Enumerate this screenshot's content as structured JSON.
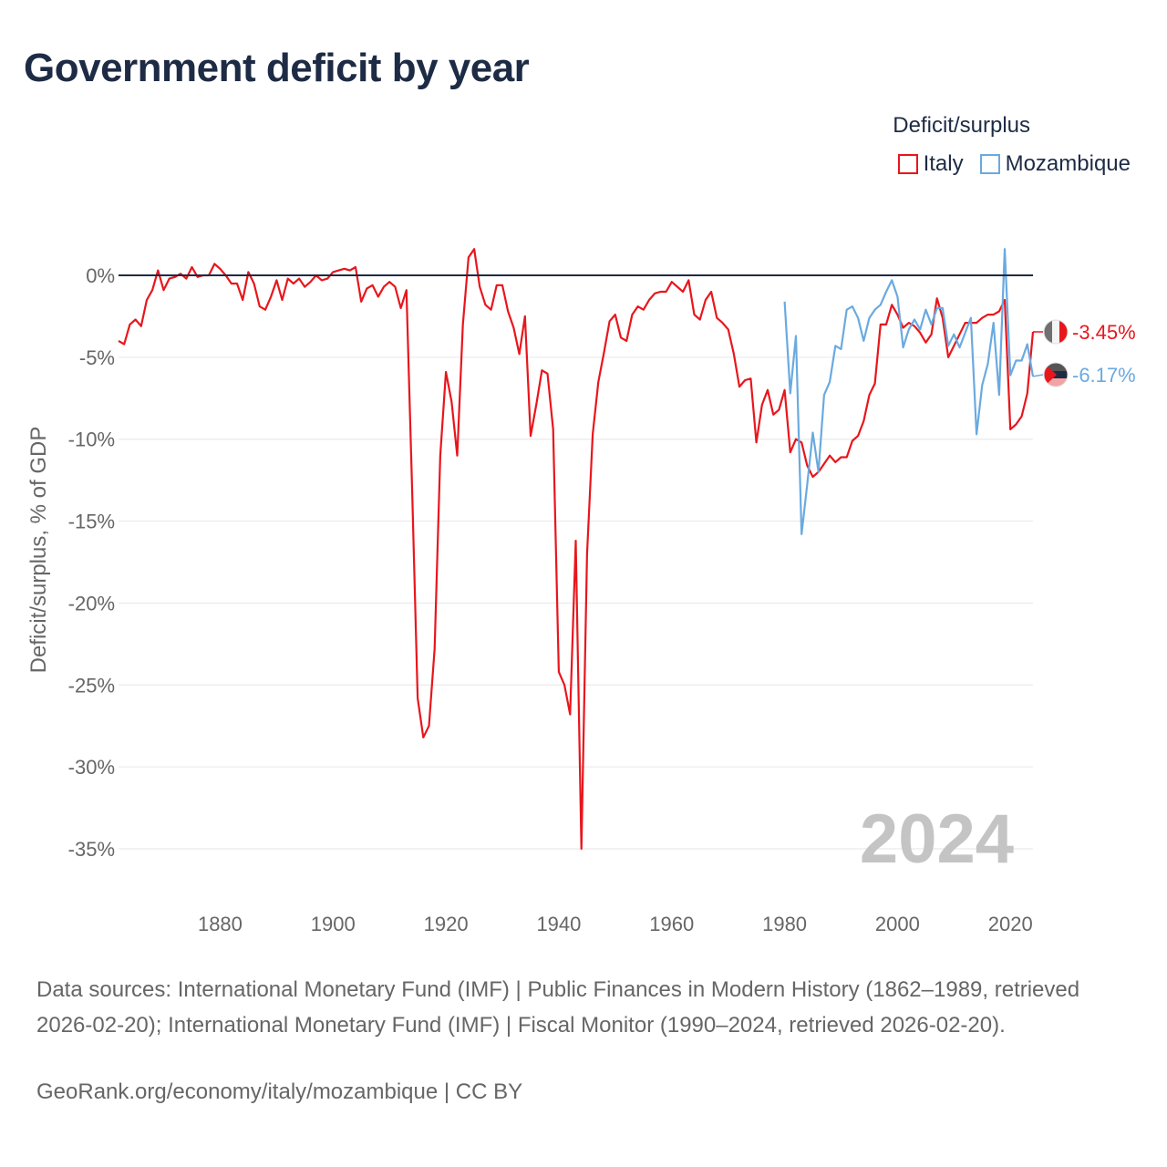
{
  "title": "Government deficit by year",
  "legend": {
    "title": "Deficit/surplus",
    "items": [
      {
        "label": "Italy",
        "color": "#e8161c"
      },
      {
        "label": "Mozambique",
        "color": "#6aaae0"
      }
    ]
  },
  "watermark_year": "2024",
  "footer": {
    "sources": "Data sources: International Monetary Fund (IMF) | Public Finances in Modern History (1862–1989, retrieved 2026-02-20); International Monetary Fund (IMF) | Fiscal Monitor (1990–2024, retrieved 2026-02-20).",
    "credit": "GeoRank.org/economy/italy/mozambique | CC BY"
  },
  "chart_data": {
    "type": "line",
    "title": "Government deficit by year",
    "xlabel": "",
    "ylabel": "Deficit/surplus, % of GDP",
    "xlim": [
      1862,
      2024
    ],
    "ylim": [
      -35,
      0
    ],
    "x_ticks": [
      1880,
      1900,
      1920,
      1940,
      1960,
      1980,
      2000,
      2020
    ],
    "y_ticks": [
      0,
      -5,
      -10,
      -15,
      -20,
      -25,
      -30,
      -35
    ],
    "y_tick_labels": [
      "0%",
      "-5%",
      "-10%",
      "-15%",
      "-20%",
      "-25%",
      "-30%",
      "-35%"
    ],
    "grid": true,
    "legend_position": "top-right",
    "series": [
      {
        "name": "Italy",
        "color": "#e8161c",
        "end_label": "-3.45%",
        "x": [
          1862,
          1863,
          1864,
          1865,
          1866,
          1867,
          1868,
          1869,
          1870,
          1871,
          1872,
          1873,
          1874,
          1875,
          1876,
          1877,
          1878,
          1879,
          1880,
          1881,
          1882,
          1883,
          1884,
          1885,
          1886,
          1887,
          1888,
          1889,
          1890,
          1891,
          1892,
          1893,
          1894,
          1895,
          1896,
          1897,
          1898,
          1899,
          1900,
          1901,
          1902,
          1903,
          1904,
          1905,
          1906,
          1907,
          1908,
          1909,
          1910,
          1911,
          1912,
          1913,
          1914,
          1915,
          1916,
          1917,
          1918,
          1919,
          1920,
          1921,
          1922,
          1923,
          1924,
          1925,
          1926,
          1927,
          1928,
          1929,
          1930,
          1931,
          1932,
          1933,
          1934,
          1935,
          1936,
          1937,
          1938,
          1939,
          1940,
          1941,
          1942,
          1943,
          1944,
          1945,
          1946,
          1947,
          1948,
          1949,
          1950,
          1951,
          1952,
          1953,
          1954,
          1955,
          1956,
          1957,
          1958,
          1959,
          1960,
          1961,
          1962,
          1963,
          1964,
          1965,
          1966,
          1967,
          1968,
          1969,
          1970,
          1971,
          1972,
          1973,
          1974,
          1975,
          1976,
          1977,
          1978,
          1979,
          1980,
          1981,
          1982,
          1983,
          1984,
          1985,
          1986,
          1987,
          1988,
          1989,
          1990,
          1991,
          1992,
          1993,
          1994,
          1995,
          1996,
          1997,
          1998,
          1999,
          2000,
          2001,
          2002,
          2003,
          2004,
          2005,
          2006,
          2007,
          2008,
          2009,
          2010,
          2011,
          2012,
          2013,
          2014,
          2015,
          2016,
          2017,
          2018,
          2019,
          2020,
          2021,
          2022,
          2023,
          2024
        ],
        "values": [
          -4.0,
          -4.2,
          -3.0,
          -2.7,
          -3.1,
          -1.5,
          -0.9,
          0.3,
          -0.9,
          -0.2,
          -0.1,
          0.1,
          -0.2,
          0.5,
          -0.1,
          0.0,
          0.0,
          0.7,
          0.4,
          0.0,
          -0.5,
          -0.5,
          -1.5,
          0.2,
          -0.5,
          -1.9,
          -2.1,
          -1.3,
          -0.3,
          -1.5,
          -0.2,
          -0.5,
          -0.2,
          -0.7,
          -0.4,
          0.0,
          -0.3,
          -0.2,
          0.2,
          0.3,
          0.4,
          0.3,
          0.5,
          -1.6,
          -0.8,
          -0.6,
          -1.3,
          -0.7,
          -0.4,
          -0.7,
          -2.0,
          -0.9,
          -13.0,
          -25.8,
          -28.2,
          -27.5,
          -22.8,
          -11.0,
          -5.9,
          -7.7,
          -11.0,
          -3.0,
          1.1,
          1.6,
          -0.7,
          -1.8,
          -2.1,
          -0.6,
          -0.6,
          -2.2,
          -3.2,
          -4.8,
          -2.5,
          -9.8,
          -7.9,
          -5.8,
          -6.0,
          -9.4,
          -24.2,
          -25.0,
          -26.8,
          -16.2,
          -35.0,
          -17.0,
          -9.7,
          -6.5,
          -4.7,
          -2.8,
          -2.4,
          -3.8,
          -4.0,
          -2.4,
          -1.9,
          -2.1,
          -1.5,
          -1.1,
          -1.0,
          -1.0,
          -0.4,
          -0.7,
          -1.0,
          -0.3,
          -2.4,
          -2.7,
          -1.5,
          -1.0,
          -2.6,
          -2.9,
          -3.3,
          -4.8,
          -6.8,
          -6.4,
          -6.3,
          -10.2,
          -7.9,
          -7.0,
          -8.5,
          -8.2,
          -7.0,
          -10.8,
          -10.0,
          -10.2,
          -11.6,
          -12.3,
          -12.0,
          -11.5,
          -11.0,
          -11.4,
          -11.1,
          -11.1,
          -10.1,
          -9.8,
          -8.9,
          -7.3,
          -6.6,
          -3.0,
          -3.0,
          -1.8,
          -2.4,
          -3.2,
          -2.9,
          -3.1,
          -3.5,
          -4.1,
          -3.6,
          -1.4,
          -2.6,
          -5.0,
          -4.3,
          -3.6,
          -2.9,
          -2.9,
          -2.9,
          -2.6,
          -2.4,
          -2.4,
          -2.2,
          -1.5,
          -9.4,
          -9.1,
          -8.6,
          -7.2,
          -3.45
        ]
      },
      {
        "name": "Mozambique",
        "color": "#6aaae0",
        "end_label": "-6.17%",
        "x": [
          1980,
          1981,
          1982,
          1983,
          1984,
          1985,
          1986,
          1987,
          1988,
          1989,
          1990,
          1991,
          1992,
          1993,
          1994,
          1995,
          1996,
          1997,
          1998,
          1999,
          2000,
          2001,
          2002,
          2003,
          2004,
          2005,
          2006,
          2007,
          2008,
          2009,
          2010,
          2011,
          2012,
          2013,
          2014,
          2015,
          2016,
          2017,
          2018,
          2019,
          2020,
          2021,
          2022,
          2023,
          2024
        ],
        "values": [
          -1.6,
          -7.2,
          -3.7,
          -15.8,
          -12.8,
          -9.6,
          -12.0,
          -7.3,
          -6.5,
          -4.3,
          -4.5,
          -2.1,
          -1.9,
          -2.6,
          -4.0,
          -2.6,
          -2.1,
          -1.8,
          -1.0,
          -0.3,
          -1.3,
          -4.4,
          -3.3,
          -2.7,
          -3.3,
          -2.1,
          -3.0,
          -2.0,
          -2.0,
          -4.3,
          -3.6,
          -4.4,
          -3.5,
          -2.6,
          -9.7,
          -6.7,
          -5.4,
          -2.9,
          -7.3,
          1.6,
          -6.1,
          -5.2,
          -5.2,
          -4.2,
          -6.17
        ]
      }
    ]
  }
}
